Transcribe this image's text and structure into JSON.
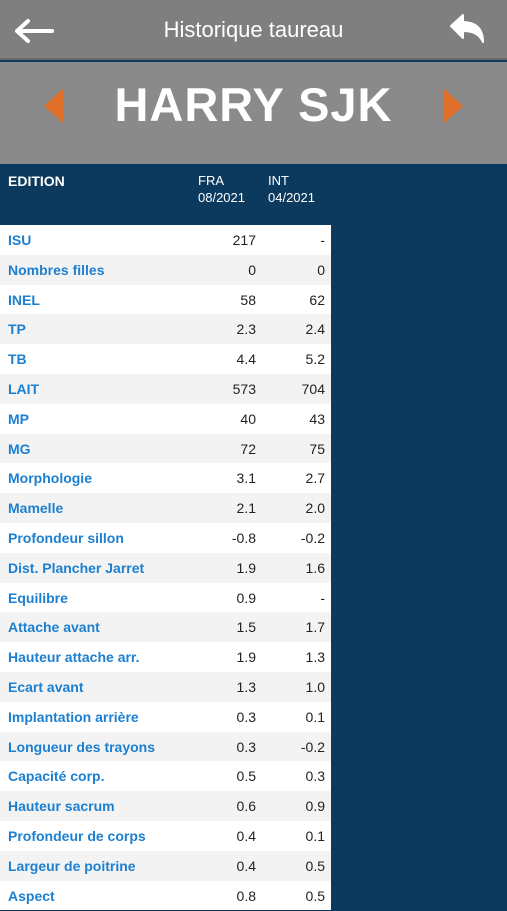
{
  "nav": {
    "title": "Historique taureau",
    "back_icon": "arrow-left-icon",
    "undo_icon": "undo-icon"
  },
  "bull": {
    "name": "HARRY SJK",
    "prev_icon": "chevron-left-icon",
    "next_icon": "chevron-right-icon",
    "arrow_color": "#e0702a"
  },
  "table": {
    "header": {
      "edition_label": "EDITION",
      "col1_line1": "FRA",
      "col1_line2": "08/2021",
      "col2_line1": "INT",
      "col2_line2": "04/2021"
    },
    "rows": [
      {
        "label": "ISU",
        "fra": "217",
        "int": "-"
      },
      {
        "label": "Nombres filles",
        "fra": "0",
        "int": "0"
      },
      {
        "label": "INEL",
        "fra": "58",
        "int": "62"
      },
      {
        "label": "TP",
        "fra": "2.3",
        "int": "2.4"
      },
      {
        "label": "TB",
        "fra": "4.4",
        "int": "5.2"
      },
      {
        "label": "LAIT",
        "fra": "573",
        "int": "704"
      },
      {
        "label": "MP",
        "fra": "40",
        "int": "43"
      },
      {
        "label": "MG",
        "fra": "72",
        "int": "75"
      },
      {
        "label": "Morphologie",
        "fra": "3.1",
        "int": "2.7"
      },
      {
        "label": "Mamelle",
        "fra": "2.1",
        "int": "2.0"
      },
      {
        "label": "Profondeur sillon",
        "fra": "-0.8",
        "int": "-0.2"
      },
      {
        "label": "Dist. Plancher Jarret",
        "fra": "1.9",
        "int": "1.6"
      },
      {
        "label": "Equilibre",
        "fra": "0.9",
        "int": "-"
      },
      {
        "label": "Attache avant",
        "fra": "1.5",
        "int": "1.7"
      },
      {
        "label": "Hauteur attache arr.",
        "fra": "1.9",
        "int": "1.3"
      },
      {
        "label": "Ecart avant",
        "fra": "1.3",
        "int": "1.0"
      },
      {
        "label": "Implantation arrière",
        "fra": "0.3",
        "int": "0.1"
      },
      {
        "label": "Longueur des trayons",
        "fra": "0.3",
        "int": "-0.2"
      },
      {
        "label": "Capacité corp.",
        "fra": "0.5",
        "int": "0.3"
      },
      {
        "label": "Hauteur sacrum",
        "fra": "0.6",
        "int": "0.9"
      },
      {
        "label": "Profondeur de corps",
        "fra": "0.4",
        "int": "0.1"
      },
      {
        "label": "Largeur de poitrine",
        "fra": "0.4",
        "int": "0.5"
      },
      {
        "label": "Aspect",
        "fra": "0.8",
        "int": "0.5"
      }
    ]
  }
}
